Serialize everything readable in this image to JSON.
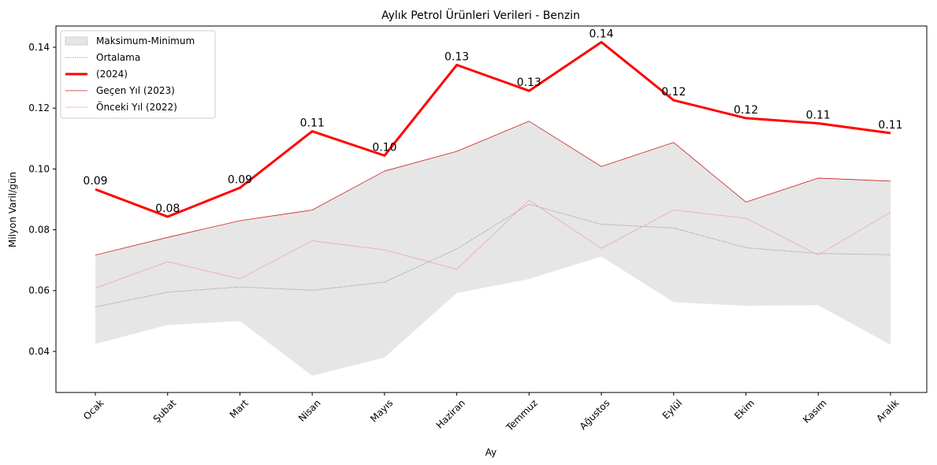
{
  "chart_data": {
    "type": "line",
    "title": "Aylık Petrol Ürünleri Verileri - Benzin",
    "xlabel": "Ay",
    "ylabel": "Milyon Varil/gün",
    "categories": [
      "Ocak",
      "Şubat",
      "Mart",
      "Nisan",
      "Mayıs",
      "Haziran",
      "Temmuz",
      "Ağustos",
      "Eylül",
      "Ekim",
      "Kasım",
      "Aralık"
    ],
    "ylim": [
      0.0265,
      0.147
    ],
    "yticks": [
      "0.04",
      "0.06",
      "0.08",
      "0.10",
      "0.12",
      "0.14"
    ],
    "ytick_values": [
      0.04,
      0.06,
      0.08,
      0.1,
      0.12,
      0.14
    ],
    "grid": false,
    "legend_position": "upper-left",
    "band": {
      "name": "Maksimum-Minimum",
      "color": "#e6e6e6",
      "max": [
        0.0717,
        0.0775,
        0.083,
        0.0865,
        0.0993,
        0.1058,
        0.1157,
        0.1008,
        0.1087,
        0.0891,
        0.097,
        0.096
      ],
      "min": [
        0.0425,
        0.0487,
        0.05,
        0.032,
        0.038,
        0.0592,
        0.0638,
        0.0712,
        0.0562,
        0.055,
        0.0552,
        0.0422
      ]
    },
    "series": [
      {
        "name": "Ortalama",
        "color": "#9a9a9a",
        "style": "dotted",
        "values": [
          0.0546,
          0.0595,
          0.0612,
          0.0601,
          0.0628,
          0.0737,
          0.0884,
          0.0818,
          0.0806,
          0.0741,
          0.0722,
          0.0718
        ]
      },
      {
        "name": " (2024)",
        "color": "#ff0000",
        "style": "bold",
        "values": [
          0.0933,
          0.0843,
          0.0938,
          0.1124,
          0.1044,
          0.1342,
          0.1257,
          0.1417,
          0.1226,
          0.1167,
          0.115,
          0.1118
        ],
        "labels": [
          "0.09",
          "0.08",
          "0.09",
          "0.11",
          "0.10",
          "0.13",
          "0.13",
          "0.14",
          "0.12",
          "0.12",
          "0.11",
          "0.11"
        ]
      },
      {
        "name": "Geçen Yıl (2023)",
        "color": "#cc2020",
        "style": "thin",
        "values": [
          0.0717,
          0.0775,
          0.083,
          0.0865,
          0.0993,
          0.1058,
          0.1157,
          0.1008,
          0.1087,
          0.0891,
          0.097,
          0.096
        ]
      },
      {
        "name": "Önceki Yıl (2022)",
        "color": "#f2a6a6",
        "style": "faint",
        "values": [
          0.0608,
          0.0695,
          0.0639,
          0.0764,
          0.0734,
          0.067,
          0.0897,
          0.0739,
          0.0865,
          0.0838,
          0.0717,
          0.0858
        ]
      }
    ]
  }
}
